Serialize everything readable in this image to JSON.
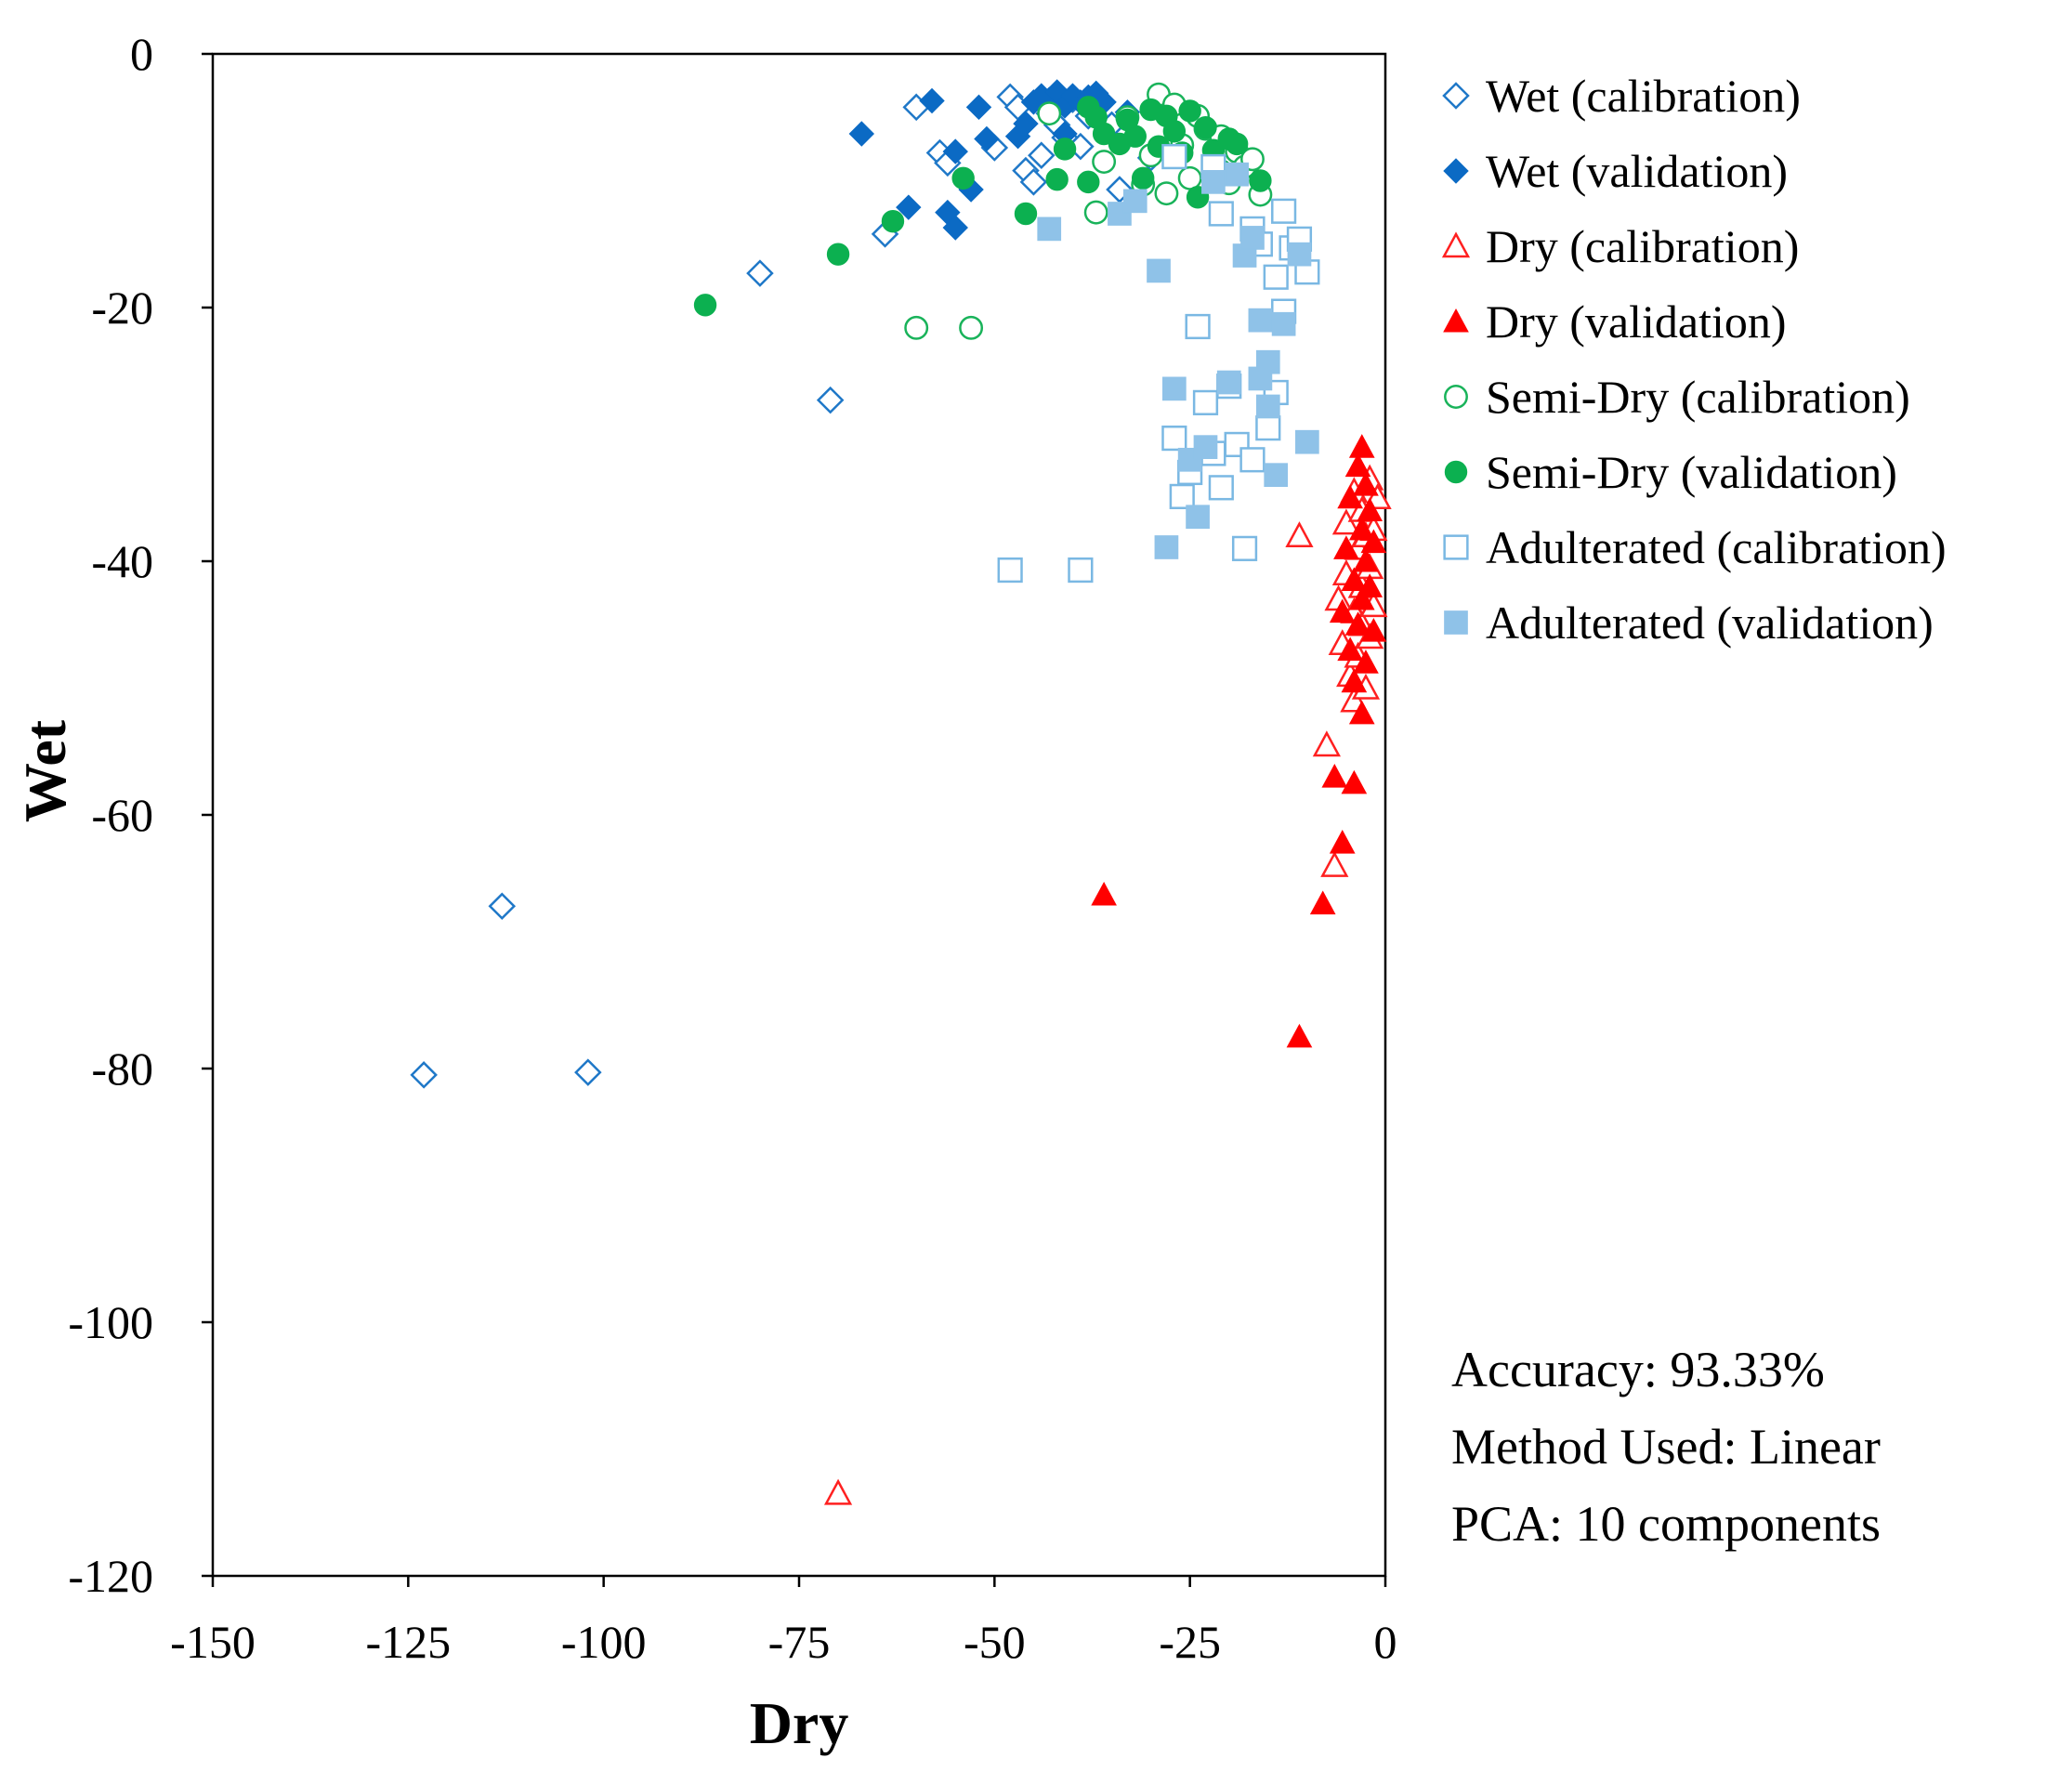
{
  "chart_data": {
    "type": "scatter",
    "title": "",
    "xlabel": "Dry",
    "ylabel": "Wet",
    "xlim": [
      -150,
      0
    ],
    "ylim": [
      -120,
      0
    ],
    "xticks": [
      "-150",
      "-125",
      "-100",
      "-75",
      "-50",
      "-25",
      "0"
    ],
    "yticks": [
      "0",
      "-20",
      "-40",
      "-60",
      "-80",
      "-100",
      "-120"
    ],
    "grid": false,
    "legend_position": "right",
    "annotations": [
      "Accuracy: 93.33%",
      "Method Used: Linear",
      "PCA: 10 components"
    ],
    "series": [
      {
        "name": "Wet (calibration)",
        "marker": "diamond-open",
        "color": "#1f78c8",
        "points": [
          [
            -123,
            -80.5
          ],
          [
            -113,
            -67.2
          ],
          [
            -102,
            -80.3
          ],
          [
            -80,
            -17.3
          ],
          [
            -71,
            -27.3
          ],
          [
            -64,
            -14.2
          ],
          [
            -60,
            -4.2
          ],
          [
            -57,
            -7.8
          ],
          [
            -56,
            -8.6
          ],
          [
            -50,
            -7.4
          ],
          [
            -48,
            -3.4
          ],
          [
            -47,
            -4.2
          ],
          [
            -46,
            -9.2
          ],
          [
            -45,
            -10.1
          ],
          [
            -44,
            -8.0
          ],
          [
            -43,
            -4.7
          ],
          [
            -42,
            -5.6
          ],
          [
            -41,
            -6.6
          ],
          [
            -40,
            -3.6
          ],
          [
            -39,
            -7.3
          ],
          [
            -38,
            -4.9
          ],
          [
            -35,
            -5.6
          ],
          [
            -34,
            -10.7
          ],
          [
            -30,
            -8.2
          ]
        ]
      },
      {
        "name": "Wet (validation)",
        "marker": "diamond-filled",
        "color": "#0b6ac4",
        "points": [
          [
            -67,
            -6.3
          ],
          [
            -61,
            -12.1
          ],
          [
            -58,
            -3.7
          ],
          [
            -56,
            -12.5
          ],
          [
            -55,
            -13.7
          ],
          [
            -55,
            -7.7
          ],
          [
            -53,
            -10.7
          ],
          [
            -52,
            -4.2
          ],
          [
            -51,
            -6.7
          ],
          [
            -47,
            -6.5
          ],
          [
            -46,
            -5.5
          ],
          [
            -45,
            -3.8
          ],
          [
            -44,
            -3.3
          ],
          [
            -43,
            -3.6
          ],
          [
            -42,
            -3.0
          ],
          [
            -41,
            -4.1
          ],
          [
            -40,
            -3.3
          ],
          [
            -39,
            -3.8
          ],
          [
            -38,
            -3.4
          ],
          [
            -37,
            -3.1
          ],
          [
            -36,
            -3.8
          ],
          [
            -33,
            -4.6
          ],
          [
            -41,
            -6.3
          ]
        ]
      },
      {
        "name": "Dry (calibration)",
        "marker": "triangle-open",
        "color": "#ff2020",
        "points": [
          [
            -70,
            -113.5
          ],
          [
            -11,
            -38.0
          ],
          [
            -7.5,
            -54.5
          ],
          [
            -6.5,
            -64.0
          ],
          [
            -6,
            -43.0
          ],
          [
            -5.5,
            -46.5
          ],
          [
            -5,
            -37.0
          ],
          [
            -5,
            -41.0
          ],
          [
            -4.5,
            -49.0
          ],
          [
            -4,
            -34.5
          ],
          [
            -4,
            -44.0
          ],
          [
            -4,
            -51.0
          ],
          [
            -3.5,
            -39.0
          ],
          [
            -3.5,
            -47.5
          ],
          [
            -3,
            -36.0
          ],
          [
            -3,
            -42.0
          ],
          [
            -3,
            -45.0
          ],
          [
            -2.5,
            -38.0
          ],
          [
            -2.5,
            -50.0
          ],
          [
            -2,
            -33.5
          ],
          [
            -2,
            -40.5
          ],
          [
            -2,
            -46.0
          ],
          [
            -1.5,
            -37.5
          ],
          [
            -1.5,
            -43.5
          ],
          [
            -1,
            -35.0
          ]
        ]
      },
      {
        "name": "Dry (validation)",
        "marker": "triangle-filled",
        "color": "#ff0000",
        "points": [
          [
            -36,
            -66.3
          ],
          [
            -11,
            -77.5
          ],
          [
            -8,
            -67.0
          ],
          [
            -6.5,
            -57.0
          ],
          [
            -5.5,
            -62.2
          ],
          [
            -4,
            -57.5
          ],
          [
            -5.5,
            -44.0
          ],
          [
            -5,
            -39.0
          ],
          [
            -4.5,
            -35.0
          ],
          [
            -4.5,
            -47.0
          ],
          [
            -4,
            -41.5
          ],
          [
            -4,
            -49.5
          ],
          [
            -3.5,
            -32.5
          ],
          [
            -3.5,
            -45.0
          ],
          [
            -3,
            -31.0
          ],
          [
            -3,
            -37.5
          ],
          [
            -3,
            -43.0
          ],
          [
            -3,
            -52.0
          ],
          [
            -2.5,
            -34.0
          ],
          [
            -2.5,
            -40.0
          ],
          [
            -2.5,
            -48.0
          ],
          [
            -2,
            -36.0
          ],
          [
            -2,
            -42.0
          ],
          [
            -1.5,
            -38.5
          ],
          [
            -1.5,
            -45.5
          ]
        ]
      },
      {
        "name": "Semi-Dry (calibration)",
        "marker": "circle-open",
        "color": "#19b35a",
        "points": [
          [
            -60,
            -21.6
          ],
          [
            -53,
            -21.6
          ],
          [
            -37,
            -12.5
          ],
          [
            -36,
            -8.5
          ],
          [
            -33,
            -5.0
          ],
          [
            -31,
            -10.3
          ],
          [
            -29,
            -3.2
          ],
          [
            -28,
            -11.0
          ],
          [
            -27,
            -4.0
          ],
          [
            -26,
            -7.2
          ],
          [
            -25,
            -9.8
          ],
          [
            -24,
            -4.9
          ],
          [
            -23,
            -5.9
          ],
          [
            -22,
            -8.8
          ],
          [
            -21,
            -6.5
          ],
          [
            -20,
            -10.2
          ],
          [
            -19,
            -7.7
          ],
          [
            -18,
            -8.9
          ],
          [
            -17,
            -8.3
          ],
          [
            -16,
            -11.1
          ],
          [
            -30,
            -8.0
          ],
          [
            -43,
            -4.7
          ]
        ]
      },
      {
        "name": "Semi-Dry (validation)",
        "marker": "circle-filled",
        "color": "#0cb050",
        "points": [
          [
            -87,
            -19.8
          ],
          [
            -70,
            -15.8
          ],
          [
            -63,
            -13.2
          ],
          [
            -54,
            -9.8
          ],
          [
            -46,
            -12.6
          ],
          [
            -42,
            -9.9
          ],
          [
            -38,
            -10.1
          ],
          [
            -38,
            -4.2
          ],
          [
            -36,
            -6.3
          ],
          [
            -34,
            -7.1
          ],
          [
            -33,
            -5.2
          ],
          [
            -32,
            -6.5
          ],
          [
            -31,
            -9.8
          ],
          [
            -30,
            -4.4
          ],
          [
            -29,
            -7.3
          ],
          [
            -28,
            -4.9
          ],
          [
            -27,
            -6.1
          ],
          [
            -26,
            -7.8
          ],
          [
            -25,
            -4.5
          ],
          [
            -24,
            -11.3
          ],
          [
            -23,
            -5.8
          ],
          [
            -22,
            -7.6
          ],
          [
            -21,
            -9.2
          ],
          [
            -20,
            -6.7
          ],
          [
            -19,
            -7.1
          ],
          [
            -16,
            -10.0
          ],
          [
            -41,
            -7.5
          ],
          [
            -37,
            -5.0
          ]
        ]
      },
      {
        "name": "Adulterated (calibration)",
        "marker": "square-open",
        "color": "#7ab8e3",
        "points": [
          [
            -48,
            -40.7
          ],
          [
            -39,
            -40.7
          ],
          [
            -27,
            -30.3
          ],
          [
            -26,
            -34.9
          ],
          [
            -25,
            -33.0
          ],
          [
            -24,
            -21.5
          ],
          [
            -23,
            -27.5
          ],
          [
            -22,
            -31.5
          ],
          [
            -21,
            -34.2
          ],
          [
            -21,
            -12.6
          ],
          [
            -20,
            -26.2
          ],
          [
            -19,
            -30.8
          ],
          [
            -18,
            -39.0
          ],
          [
            -17,
            -32.0
          ],
          [
            -17,
            -13.8
          ],
          [
            -16,
            -15.0
          ],
          [
            -15,
            -29.5
          ],
          [
            -14,
            -17.6
          ],
          [
            -14,
            -26.7
          ],
          [
            -13,
            -12.4
          ],
          [
            -13,
            -20.3
          ],
          [
            -12,
            -15.3
          ],
          [
            -11,
            -14.6
          ],
          [
            -10,
            -17.2
          ],
          [
            -27,
            -8.1
          ],
          [
            -22,
            -8.9
          ]
        ]
      },
      {
        "name": "Adulterated (validation)",
        "marker": "square-filled",
        "color": "#8fc2e8",
        "points": [
          [
            -43,
            -13.8
          ],
          [
            -34,
            -12.6
          ],
          [
            -29,
            -17.1
          ],
          [
            -28,
            -38.9
          ],
          [
            -27,
            -26.4
          ],
          [
            -25,
            -32.0
          ],
          [
            -24,
            -36.5
          ],
          [
            -23,
            -31.0
          ],
          [
            -22,
            -10.1
          ],
          [
            -20,
            -25.9
          ],
          [
            -18,
            -15.9
          ],
          [
            -17,
            -14.5
          ],
          [
            -16,
            -25.6
          ],
          [
            -16,
            -21.0
          ],
          [
            -15,
            -27.8
          ],
          [
            -15,
            -24.3
          ],
          [
            -14,
            -33.2
          ],
          [
            -13,
            -21.3
          ],
          [
            -11,
            -15.8
          ],
          [
            -10,
            -30.6
          ],
          [
            -19,
            -9.5
          ],
          [
            -32,
            -11.6
          ]
        ]
      }
    ]
  }
}
